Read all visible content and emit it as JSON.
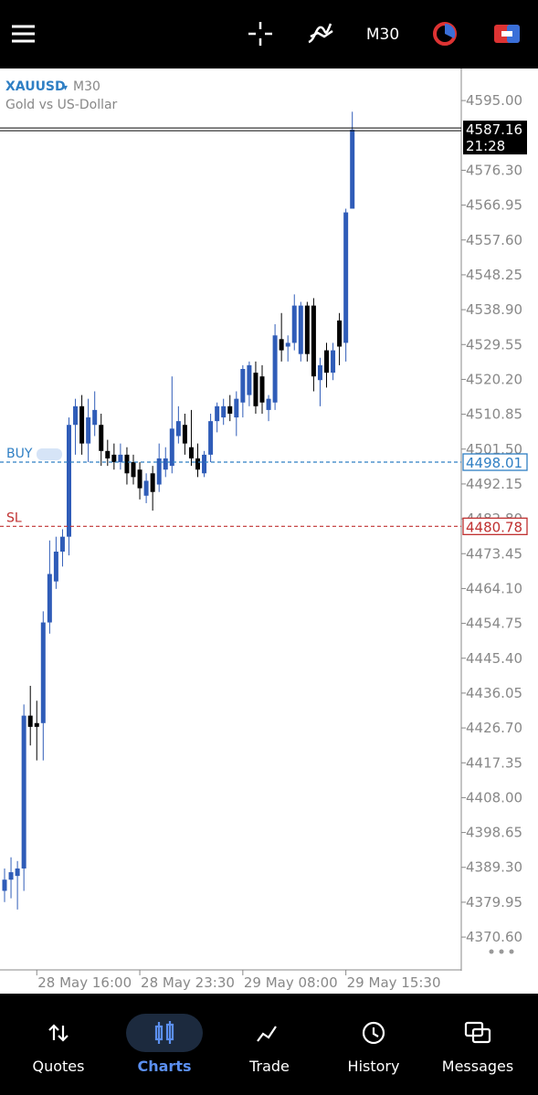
{
  "toolbar": {
    "timeframe": "M30"
  },
  "chart_data": {
    "type": "candlestick",
    "symbol": "XAUUSD",
    "timeframe": "M30",
    "description": "Gold vs US-Dollar",
    "categories": [
      null,
      null,
      null,
      null,
      null,
      "28 May 16:00",
      null,
      null,
      null,
      null,
      null,
      null,
      null,
      null,
      null,
      null,
      null,
      null,
      null,
      null,
      null,
      "28 May 23:30",
      null,
      null,
      null,
      null,
      null,
      null,
      null,
      null,
      null,
      null,
      null,
      null,
      null,
      null,
      null,
      "29 May 08:00",
      null,
      null,
      null,
      null,
      null,
      null,
      null,
      null,
      null,
      null,
      null,
      null,
      null,
      null,
      null,
      "29 May 15:30",
      null
    ],
    "open": [
      4383,
      4386,
      4387,
      4389,
      4430,
      4428,
      4428,
      4455,
      4466,
      4474,
      4478,
      4508,
      4513,
      4503,
      4508,
      4508,
      4501,
      4500,
      4498,
      4500,
      4498,
      4496,
      4489,
      4495,
      4492,
      4496,
      4497,
      4505,
      4508,
      4502,
      4499,
      4495,
      4500,
      4509,
      4510,
      4513,
      4510,
      4514,
      4516,
      4522,
      4521,
      4512,
      4514,
      4531,
      4529,
      4530,
      4527,
      4540,
      4540,
      4520,
      4528,
      4522,
      4536,
      4530,
      4566
    ],
    "high": [
      4389,
      4392,
      4391,
      4433,
      4438,
      4434,
      4458,
      4477,
      4478,
      4480,
      4510,
      4515,
      4516,
      4515,
      4517,
      4511,
      4504,
      4503,
      4503,
      4502,
      4500,
      4498,
      4495,
      4497,
      4503,
      4502,
      4521,
      4513,
      4511,
      4512,
      4503,
      4501,
      4511,
      4514,
      4515,
      4516,
      4517,
      4524,
      4525,
      4525,
      4524,
      4516,
      4535,
      4538,
      4532,
      4543,
      4541,
      4541,
      4542,
      4526,
      4530,
      4530,
      4538,
      4566,
      4592
    ],
    "low": [
      4380,
      4381,
      4378,
      4383,
      4422,
      4418,
      4418,
      4452,
      4464,
      4470,
      4473,
      4500,
      4500,
      4498,
      4505,
      4497,
      4497,
      4496,
      4496,
      4492,
      4492,
      4488,
      4487,
      4485,
      4490,
      4494,
      4495,
      4503,
      4500,
      4497,
      4494,
      4494,
      4498,
      4506,
      4508,
      4509,
      4505,
      4510,
      4513,
      4511,
      4511,
      4509,
      4512,
      4525,
      4525,
      4528,
      4525,
      4525,
      4517,
      4513,
      4518,
      4520,
      4524,
      4525,
      4566
    ],
    "close": [
      4386,
      4388,
      4389,
      4430,
      4427,
      4427,
      4455,
      4468,
      4474,
      4478,
      4508,
      4513,
      4503,
      4510,
      4512,
      4501,
      4499,
      4498,
      4500,
      4495,
      4494,
      4491,
      4493,
      4490,
      4499,
      4499,
      4507,
      4509,
      4503,
      4499,
      4496,
      4500,
      4509,
      4513,
      4513,
      4511,
      4515,
      4523,
      4524,
      4513,
      4514,
      4515,
      4532,
      4528,
      4530,
      4540,
      4540,
      4527,
      4521,
      4524,
      4522,
      4528,
      4529,
      4565,
      4587.16
    ],
    "up_color": "#2f5cb8",
    "down_color": "#000000",
    "ylim": [
      4361.8,
      4603.6
    ],
    "yticks": [
      {
        "value": 4595.0,
        "label": "4595.00"
      },
      {
        "value": 4576.3,
        "label": "4576.30"
      },
      {
        "value": 4566.95,
        "label": "4566.95"
      },
      {
        "value": 4557.6,
        "label": "4557.60"
      },
      {
        "value": 4548.25,
        "label": "4548.25"
      },
      {
        "value": 4538.9,
        "label": "4538.90"
      },
      {
        "value": 4529.55,
        "label": "4529.55"
      },
      {
        "value": 4520.2,
        "label": "4520.20"
      },
      {
        "value": 4510.85,
        "label": "4510.85"
      },
      {
        "value": 4501.5,
        "label": "4501.50"
      },
      {
        "value": 4492.15,
        "label": "4492.15"
      },
      {
        "value": 4482.8,
        "label": "4482.80"
      },
      {
        "value": 4473.45,
        "label": "4473.45"
      },
      {
        "value": 4464.1,
        "label": "4464.10"
      },
      {
        "value": 4454.75,
        "label": "4454.75"
      },
      {
        "value": 4445.4,
        "label": "4445.40"
      },
      {
        "value": 4436.05,
        "label": "4436.05"
      },
      {
        "value": 4426.7,
        "label": "4426.70"
      },
      {
        "value": 4417.35,
        "label": "4417.35"
      },
      {
        "value": 4408.0,
        "label": "4408.00"
      },
      {
        "value": 4398.65,
        "label": "4398.65"
      },
      {
        "value": 4389.3,
        "label": "4389.30"
      },
      {
        "value": 4379.95,
        "label": "4379.95"
      },
      {
        "value": 4370.6,
        "label": "4370.60"
      }
    ],
    "grid": false,
    "price_line": {
      "value": 4587.16,
      "label": "4587.16",
      "time": "21:28"
    },
    "buy_line": {
      "name": "BUY",
      "value": 4498.01,
      "label": "4498.01",
      "color": "#2f7fc4"
    },
    "sl_line": {
      "name": "SL",
      "value": 4480.78,
      "label": "4480.78",
      "color": "#c03030"
    }
  },
  "nav": {
    "items": [
      "Quotes",
      "Charts",
      "Trade",
      "History",
      "Messages"
    ],
    "active": 1
  }
}
